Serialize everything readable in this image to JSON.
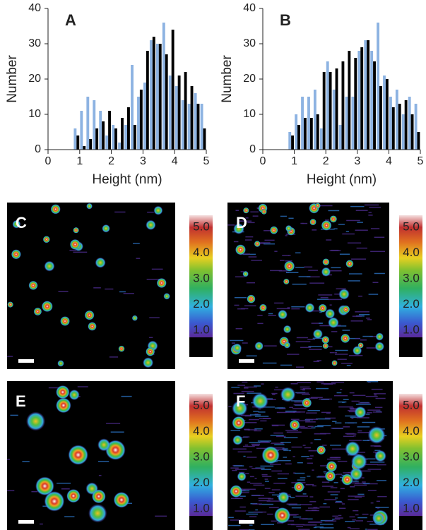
{
  "chart_data": [
    {
      "type": "bar",
      "panel": "A",
      "x_label": "Height (nm)",
      "y_label": "Number",
      "x": [
        0.9,
        1.1,
        1.3,
        1.5,
        1.7,
        1.9,
        2.1,
        2.3,
        2.5,
        2.7,
        2.9,
        3.1,
        3.3,
        3.5,
        3.7,
        3.9,
        4.1,
        4.3,
        4.5,
        4.7,
        4.9
      ],
      "series": [
        {
          "color": "#8db3e2",
          "values": [
            6,
            11,
            15,
            14,
            11,
            4,
            7,
            2,
            7,
            24,
            15,
            19,
            31,
            30,
            36,
            21,
            18,
            14,
            13,
            16,
            13
          ]
        },
        {
          "color": "#000000",
          "values": [
            4,
            1,
            3,
            6,
            8,
            11,
            6,
            9,
            12,
            7,
            17,
            28,
            32,
            30,
            27,
            34,
            21,
            22,
            18,
            13,
            6
          ]
        }
      ],
      "xlim": [
        0,
        5
      ],
      "xticks": [
        0,
        1,
        2,
        3,
        4,
        5
      ],
      "ylim": [
        0,
        40
      ],
      "yticks": [
        0,
        10,
        20,
        30,
        40
      ]
    },
    {
      "type": "bar",
      "panel": "B",
      "x_label": "Height (nm)",
      "y_label": "Number",
      "x": [
        0.9,
        1.1,
        1.3,
        1.5,
        1.7,
        1.9,
        2.1,
        2.3,
        2.5,
        2.7,
        2.9,
        3.1,
        3.3,
        3.5,
        3.7,
        3.9,
        4.1,
        4.3,
        4.5,
        4.7,
        4.9
      ],
      "series": [
        {
          "color": "#8db3e2",
          "values": [
            5,
            10,
            15,
            15,
            17,
            6,
            25,
            17,
            7,
            15,
            15,
            28,
            31,
            28,
            36,
            21,
            15,
            17,
            10,
            15,
            13
          ]
        },
        {
          "color": "#000000",
          "values": [
            4,
            7,
            9,
            9,
            10,
            22,
            22,
            23,
            25,
            28,
            26,
            29,
            31,
            25,
            18,
            20,
            12,
            13,
            14,
            10,
            5
          ]
        }
      ],
      "xlim": [
        0,
        5
      ],
      "xticks": [
        0,
        1,
        2,
        3,
        4,
        5
      ],
      "ylim": [
        0,
        40
      ],
      "yticks": [
        0,
        10,
        20,
        30,
        40
      ]
    }
  ],
  "images": [
    {
      "panel": "C",
      "colorbar_ticks": [
        {
          "value": 1,
          "label": "1.0"
        },
        {
          "value": 2,
          "label": "2.0"
        },
        {
          "value": 3,
          "label": "3.0"
        },
        {
          "value": 4,
          "label": "4.0"
        },
        {
          "value": 5,
          "label": "5.0"
        }
      ]
    },
    {
      "panel": "D",
      "colorbar_ticks": [
        {
          "value": 1,
          "label": "1.0"
        },
        {
          "value": 2,
          "label": "2.0"
        },
        {
          "value": 3,
          "label": "3.0"
        },
        {
          "value": 4,
          "label": "4.0"
        },
        {
          "value": 5,
          "label": "5.0"
        }
      ]
    },
    {
      "panel": "E",
      "colorbar_ticks": [
        {
          "value": 1,
          "label": "1.0"
        },
        {
          "value": 2,
          "label": "2.0"
        },
        {
          "value": 3,
          "label": "3.0"
        },
        {
          "value": 4,
          "label": "4.0"
        },
        {
          "value": 5,
          "label": "5.0"
        }
      ]
    },
    {
      "panel": "F",
      "colorbar_ticks": [
        {
          "value": 1,
          "label": "1.0"
        },
        {
          "value": 2,
          "label": "2.0"
        },
        {
          "value": 3,
          "label": "3.0"
        },
        {
          "value": 4,
          "label": "4.0"
        },
        {
          "value": 5,
          "label": "5.0"
        }
      ]
    }
  ]
}
